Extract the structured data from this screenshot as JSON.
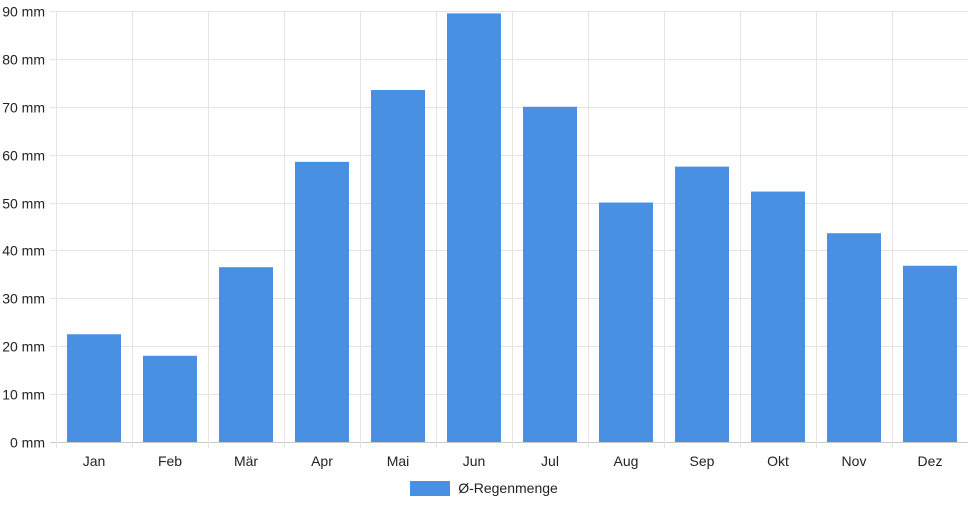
{
  "chart_data": {
    "type": "bar",
    "title": "",
    "xlabel": "",
    "ylabel": "",
    "categories": [
      "Jan",
      "Feb",
      "Mär",
      "Apr",
      "Mai",
      "Jun",
      "Jul",
      "Aug",
      "Sep",
      "Okt",
      "Nov",
      "Dez"
    ],
    "series": [
      {
        "name": "Ø-Regenmenge",
        "color": "#4a90e2",
        "values": [
          22.5,
          18,
          36.5,
          58.5,
          73.5,
          89.5,
          70,
          50,
          57.5,
          52.3,
          43.6,
          36.8
        ]
      }
    ],
    "ylim": [
      0,
      90
    ],
    "yticks": [
      "0 mm",
      "10 mm",
      "20 mm",
      "30 mm",
      "40 mm",
      "50 mm",
      "60 mm",
      "70 mm",
      "80 mm",
      "90 mm"
    ],
    "grid": true,
    "legend_position": "bottom"
  }
}
